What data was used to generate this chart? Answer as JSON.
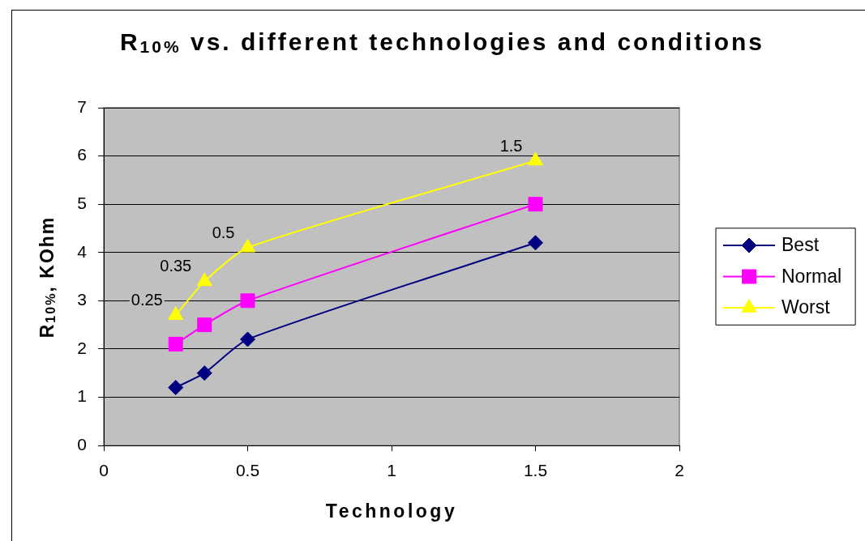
{
  "chart_data": {
    "type": "line",
    "title": "R$_{10%}$ vs. different technologies and conditions",
    "xlabel": "Technology",
    "ylabel": "R$_{10%}$, KOhm",
    "x": [
      0.25,
      0.35,
      0.5,
      1.5
    ],
    "series": [
      {
        "name": "Best",
        "color": "#000080",
        "marker": "diamond",
        "values": [
          1.2,
          1.5,
          2.2,
          4.2
        ]
      },
      {
        "name": "Normal",
        "color": "#ff00ff",
        "marker": "square",
        "values": [
          2.1,
          2.5,
          3.0,
          5.0
        ]
      },
      {
        "name": "Worst",
        "color": "#ffff00",
        "marker": "triangle",
        "values": [
          2.7,
          3.4,
          4.1,
          5.9
        ]
      }
    ],
    "xlim": [
      0,
      2
    ],
    "xticks": [
      0,
      0.5,
      1,
      1.5,
      2
    ],
    "ylim": [
      0,
      7
    ],
    "yticks": [
      0,
      1,
      2,
      3,
      4,
      5,
      6,
      7
    ],
    "grid": "y",
    "legend": "right",
    "line_style": "solid",
    "annotations": [
      {
        "text": "0.25",
        "x": 0.25,
        "y": 2.7
      },
      {
        "text": "0.35",
        "x": 0.35,
        "y": 3.4
      },
      {
        "text": "0.5",
        "x": 0.5,
        "y": 4.1
      },
      {
        "text": "1.5",
        "x": 1.5,
        "y": 5.9
      }
    ]
  }
}
